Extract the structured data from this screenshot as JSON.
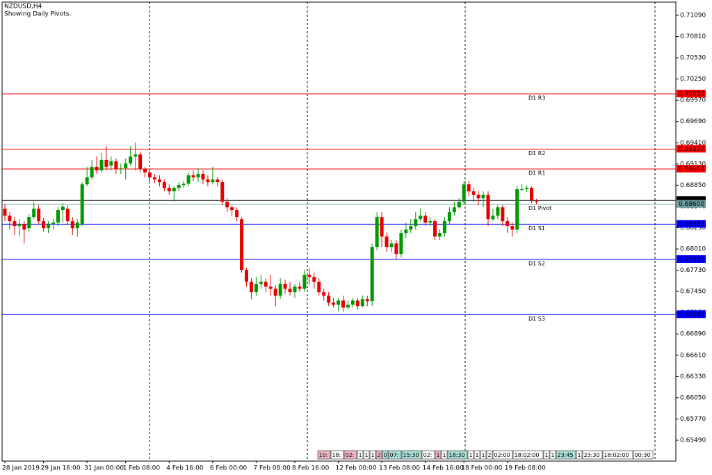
{
  "chart_data": {
    "type": "candlestick",
    "title": "NZDUSD,H4",
    "subtitle": "Showing Daily Pivots.",
    "categories": [
      "28 Jan 2019",
      null,
      null,
      null,
      null,
      null,
      null,
      null,
      "29 Jan 16:00",
      null,
      null,
      null,
      null,
      null,
      null,
      null,
      null,
      "31 Jan 00:00",
      null,
      null,
      null,
      null,
      null,
      null,
      null,
      "1 Feb 08:00",
      null,
      null,
      null,
      null,
      null,
      null,
      null,
      null,
      "4 Feb 16:00",
      null,
      null,
      null,
      null,
      null,
      null,
      null,
      null,
      "6 Feb 00:00",
      null,
      null,
      null,
      null,
      null,
      null,
      null,
      null,
      "7 Feb 08:00",
      null,
      null,
      null,
      null,
      null,
      null,
      null,
      "8 Feb 16:00",
      null,
      null,
      null,
      null,
      null,
      null,
      null,
      null,
      "12 Feb 00:00",
      null,
      null,
      null,
      null,
      null,
      null,
      null,
      null,
      "13 Feb 08:00",
      null,
      null,
      null,
      null,
      null,
      null,
      null,
      null,
      "14 Feb 16:00",
      null,
      null,
      null,
      null,
      null,
      null,
      null,
      "18 Feb 00:00",
      null,
      null,
      null,
      null,
      null,
      null,
      null,
      null,
      "19 Feb 08:00",
      null,
      null,
      null,
      null,
      null,
      null
    ],
    "open": [
      0.68541,
      0.68449,
      0.68376,
      0.68312,
      0.68339,
      0.68284,
      0.68431,
      0.68541,
      0.68376,
      0.68284,
      0.68339,
      0.68358,
      0.68523,
      0.68541,
      0.68376,
      0.68284,
      0.68339,
      0.68862,
      0.68954,
      0.69093,
      0.69046,
      0.69184,
      0.6911,
      0.69165,
      0.69064,
      0.69073,
      0.69138,
      0.69229,
      0.69256,
      0.69064,
      0.69019,
      0.68954,
      0.68926,
      0.6889,
      0.68816,
      0.6877,
      0.68816,
      0.68853,
      0.68871,
      0.68981,
      0.68954,
      0.69,
      0.68926,
      0.6889,
      0.68926,
      0.6889,
      0.68633,
      0.68559,
      0.68523,
      0.68403,
      0.67734,
      0.67578,
      0.67441,
      0.67551,
      0.67578,
      0.67514,
      0.67486,
      0.67395,
      0.67551,
      0.67486,
      0.67441,
      0.67514,
      0.67486,
      0.6767,
      0.67642,
      0.67578,
      0.67441,
      0.67395,
      0.67303,
      0.67276,
      0.67331,
      0.67239,
      0.67276,
      0.67331,
      0.67257,
      0.67349,
      0.67321,
      0.68037,
      0.68431,
      0.68174,
      0.68037,
      0.68083,
      0.67945,
      0.6822,
      0.68266,
      0.68312,
      0.68403,
      0.68449,
      0.68358,
      0.68376,
      0.68174,
      0.6822,
      0.68376,
      0.68495,
      0.68559,
      0.68633,
      0.68862,
      0.6877,
      0.68724,
      0.68678,
      0.68724,
      0.68403,
      0.68449,
      0.68559,
      0.68376,
      0.68312,
      0.68266,
      0.68798,
      0.68798,
      0.68816,
      0.68651
    ],
    "high": [
      0.68605,
      0.68495,
      0.68431,
      0.68403,
      0.68376,
      0.68468,
      0.68633,
      0.68587,
      0.68422,
      0.68376,
      0.68403,
      0.68569,
      0.68614,
      0.68587,
      0.68431,
      0.68403,
      0.6889,
      0.69093,
      0.69184,
      0.69229,
      0.69275,
      0.69366,
      0.69229,
      0.69201,
      0.69138,
      0.69201,
      0.69366,
      0.69412,
      0.69293,
      0.69093,
      0.69046,
      0.69,
      0.68981,
      0.68926,
      0.68862,
      0.68835,
      0.6889,
      0.68908,
      0.69019,
      0.69046,
      0.69073,
      0.69046,
      0.68981,
      0.69093,
      0.68954,
      0.68926,
      0.68678,
      0.68587,
      0.68559,
      0.68431,
      0.67762,
      0.67624,
      0.67642,
      0.6767,
      0.67624,
      0.6767,
      0.67532,
      0.67624,
      0.67606,
      0.67578,
      0.67551,
      0.67578,
      0.67734,
      0.67762,
      0.67697,
      0.67624,
      0.67486,
      0.67441,
      0.67367,
      0.67367,
      0.67395,
      0.67331,
      0.67367,
      0.67367,
      0.67395,
      0.67395,
      0.68083,
      0.68495,
      0.68495,
      0.6822,
      0.68129,
      0.68129,
      0.68266,
      0.68358,
      0.68403,
      0.68495,
      0.68541,
      0.68495,
      0.68431,
      0.68403,
      0.68266,
      0.68431,
      0.68559,
      0.68633,
      0.68678,
      0.68908,
      0.68908,
      0.68816,
      0.6877,
      0.6877,
      0.6877,
      0.68541,
      0.68587,
      0.68587,
      0.68431,
      0.68358,
      0.68835,
      0.68862,
      0.68853,
      0.68835,
      0.68669
    ],
    "low": [
      0.68376,
      0.68266,
      0.68193,
      0.68174,
      0.68083,
      0.68239,
      0.68403,
      0.68339,
      0.68239,
      0.6822,
      0.68266,
      0.68312,
      0.68358,
      0.68339,
      0.68193,
      0.68174,
      0.68312,
      0.68835,
      0.68926,
      0.69,
      0.69019,
      0.69046,
      0.69046,
      0.69,
      0.69,
      0.68926,
      0.6911,
      0.69046,
      0.69019,
      0.68954,
      0.6889,
      0.6888,
      0.68835,
      0.6877,
      0.68724,
      0.68633,
      0.6877,
      0.68816,
      0.68835,
      0.68908,
      0.6889,
      0.68862,
      0.68835,
      0.68862,
      0.68835,
      0.68587,
      0.68495,
      0.68449,
      0.68376,
      0.67697,
      0.67514,
      0.67349,
      0.67395,
      0.67486,
      0.67441,
      0.67395,
      0.67257,
      0.67349,
      0.67422,
      0.67395,
      0.67367,
      0.67441,
      0.67441,
      0.67532,
      0.67486,
      0.67395,
      0.67331,
      0.67257,
      0.67239,
      0.67184,
      0.67184,
      0.67212,
      0.67239,
      0.67212,
      0.67239,
      0.67257,
      0.67257,
      0.67991,
      0.68037,
      0.67973,
      0.67973,
      0.67881,
      0.67899,
      0.68156,
      0.6822,
      0.68266,
      0.68376,
      0.68312,
      0.68312,
      0.68129,
      0.68129,
      0.68174,
      0.68339,
      0.68449,
      0.68541,
      0.68587,
      0.68706,
      0.68633,
      0.68587,
      0.68559,
      0.68312,
      0.68376,
      0.68403,
      0.68312,
      0.6822,
      0.68174,
      0.6822,
      0.6877,
      0.68761,
      0.68614,
      0.68605
    ],
    "close": [
      0.68449,
      0.68376,
      0.68312,
      0.68339,
      0.68266,
      0.68431,
      0.68541,
      0.68376,
      0.68284,
      0.68339,
      0.68358,
      0.68523,
      0.68569,
      0.68376,
      0.68284,
      0.68358,
      0.68862,
      0.68954,
      0.69093,
      0.69046,
      0.69184,
      0.69093,
      0.69165,
      0.69064,
      0.69073,
      0.69138,
      0.69229,
      0.69256,
      0.69064,
      0.69019,
      0.68954,
      0.68926,
      0.6889,
      0.68816,
      0.6877,
      0.68816,
      0.68853,
      0.68871,
      0.68981,
      0.68954,
      0.69,
      0.68926,
      0.6889,
      0.68926,
      0.6889,
      0.68633,
      0.68559,
      0.68523,
      0.68431,
      0.67734,
      0.67578,
      0.67441,
      0.67551,
      0.67578,
      0.67514,
      0.67486,
      0.67395,
      0.67551,
      0.67486,
      0.67441,
      0.67514,
      0.67486,
      0.6767,
      0.67642,
      0.67578,
      0.67441,
      0.67395,
      0.67303,
      0.67276,
      0.67331,
      0.67239,
      0.67276,
      0.67331,
      0.67257,
      0.67349,
      0.67321,
      0.68037,
      0.68431,
      0.68174,
      0.68037,
      0.68083,
      0.67945,
      0.6822,
      0.68266,
      0.68312,
      0.68403,
      0.68449,
      0.68358,
      0.68376,
      0.68174,
      0.6822,
      0.68376,
      0.68495,
      0.68559,
      0.68633,
      0.68862,
      0.6877,
      0.68724,
      0.68678,
      0.68724,
      0.68403,
      0.68449,
      0.68559,
      0.68376,
      0.68312,
      0.68266,
      0.68798,
      0.68798,
      0.68816,
      0.68651,
      0.68633
    ],
    "up_color": "#009a00",
    "down_color": "#e60000",
    "ylim": [
      0.65215,
      0.71264
    ],
    "yticks": [
      {
        "value": 0.7109,
        "label": "0.71090"
      },
      {
        "value": 0.7081,
        "label": "0.70810"
      },
      {
        "value": 0.7053,
        "label": "0.70530"
      },
      {
        "value": 0.7025,
        "label": "0.70250"
      },
      {
        "value": 0.6997,
        "label": "0.69970"
      },
      {
        "value": 0.6969,
        "label": "0.69690"
      },
      {
        "value": 0.6941,
        "label": "0.69410"
      },
      {
        "value": 0.6913,
        "label": "0.69130"
      },
      {
        "value": 0.6885,
        "label": "0.68850"
      },
      {
        "value": 0.6857,
        "label": "0.68570"
      },
      {
        "value": 0.6829,
        "label": "0.68290"
      },
      {
        "value": 0.6801,
        "label": "0.68010"
      },
      {
        "value": 0.6773,
        "label": "0.67730"
      },
      {
        "value": 0.6745,
        "label": "0.67450"
      },
      {
        "value": 0.6717,
        "label": "0.67170"
      },
      {
        "value": 0.6689,
        "label": "0.66890"
      },
      {
        "value": 0.6661,
        "label": "0.66610"
      },
      {
        "value": 0.6633,
        "label": "0.66330"
      },
      {
        "value": 0.6605,
        "label": "0.66050"
      },
      {
        "value": 0.6577,
        "label": "0.65770"
      },
      {
        "value": 0.6549,
        "label": "0.65490"
      }
    ],
    "last_price": {
      "value": 0.6865,
      "label": "0.68650"
    },
    "pivots": [
      {
        "name": "D1 R3",
        "value": 0.70054,
        "label": "0.70054",
        "color": "#ff0000"
      },
      {
        "name": "D1 R2",
        "value": 0.69327,
        "label": "0.69327",
        "color": "#ff0000"
      },
      {
        "name": "D1 R1",
        "value": 0.69064,
        "label": "0.69064",
        "color": "#ff0000"
      },
      {
        "name": "D1 Pivot",
        "value": 0.686,
        "label": "0.68600",
        "color": "#6e9e9e"
      },
      {
        "name": "D1 S1",
        "value": 0.68337,
        "label": "0.68337",
        "color": "#0000ff"
      },
      {
        "name": "D1 S2",
        "value": 0.67873,
        "label": "0.67873",
        "color": "#0000ff"
      },
      {
        "name": "D1 S3",
        "value": 0.67146,
        "label": "0.67146",
        "color": "#0000ff"
      }
    ],
    "time_boxes": [
      {
        "text": "10:",
        "color": "#f4b6c2"
      },
      {
        "text": "18:",
        "color": "#ffffff"
      },
      {
        "text": "02:",
        "color": "#f4b6c2"
      },
      {
        "text": "1",
        "color": "#ffffff"
      },
      {
        "text": "1",
        "color": "#ffffff"
      },
      {
        "text": "1",
        "color": "#ffffff"
      },
      {
        "text": "2",
        "color": "#f4b6c2"
      },
      {
        "text": "0",
        "color": "#a9e0d8"
      },
      {
        "text": "07:",
        "color": "#a9e0d8"
      },
      {
        "text": "15:30",
        "color": "#a9e0d8"
      },
      {
        "text": "02:",
        "color": "#ffffff"
      },
      {
        "text": "1",
        "color": "#f4b6c2"
      },
      {
        "text": "1",
        "color": "#ffffff"
      },
      {
        "text": "18:30",
        "color": "#a9e0d8"
      },
      {
        "text": "1",
        "color": "#ffffff"
      },
      {
        "text": "1",
        "color": "#ffffff"
      },
      {
        "text": "1",
        "color": "#ffffff"
      },
      {
        "text": "2",
        "color": "#ffffff"
      },
      {
        "text": "02:00",
        "color": "#ffffff"
      },
      {
        "text": "18:02:00",
        "color": "#ffffff"
      },
      {
        "text": "1",
        "color": "#ffffff"
      },
      {
        "text": "1",
        "color": "#ffffff"
      },
      {
        "text": "23:45",
        "color": "#a9e0d8"
      },
      {
        "text": "1",
        "color": "#ffffff"
      },
      {
        "text": "23:30",
        "color": "#ffffff"
      },
      {
        "text": "18:02:00",
        "color": "#ffffff"
      },
      {
        "text": "00:30",
        "color": "#ffffff"
      }
    ]
  }
}
